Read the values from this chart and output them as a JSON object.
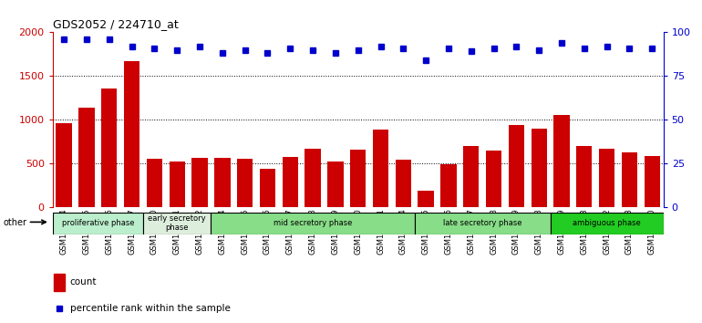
{
  "title": "GDS2052 / 224710_at",
  "samples": [
    "GSM109814",
    "GSM109815",
    "GSM109816",
    "GSM109817",
    "GSM109820",
    "GSM109821",
    "GSM109822",
    "GSM109824",
    "GSM109825",
    "GSM109826",
    "GSM109827",
    "GSM109828",
    "GSM109829",
    "GSM109830",
    "GSM109831",
    "GSM109834",
    "GSM109835",
    "GSM109836",
    "GSM109837",
    "GSM109838",
    "GSM109839",
    "GSM109818",
    "GSM109819",
    "GSM109823",
    "GSM109832",
    "GSM109833",
    "GSM109840"
  ],
  "counts": [
    960,
    1140,
    1360,
    1670,
    550,
    520,
    560,
    560,
    550,
    430,
    570,
    660,
    520,
    650,
    880,
    540,
    180,
    490,
    700,
    640,
    940,
    900,
    1050,
    700,
    670,
    620,
    580
  ],
  "percentiles": [
    96,
    96,
    96,
    92,
    91,
    90,
    92,
    88,
    90,
    88,
    91,
    90,
    88,
    90,
    92,
    91,
    84,
    91,
    89,
    91,
    92,
    90,
    94,
    91,
    92,
    91,
    91
  ],
  "bar_color": "#cc0000",
  "dot_color": "#0000cc",
  "phases": [
    {
      "label": "proliferative phase",
      "start": 0,
      "end": 4,
      "color": "#bbeecc"
    },
    {
      "label": "early secretory\nphase",
      "start": 4,
      "end": 7,
      "color": "#ddeedd"
    },
    {
      "label": "mid secretory phase",
      "start": 7,
      "end": 16,
      "color": "#88dd88"
    },
    {
      "label": "late secretory phase",
      "start": 16,
      "end": 22,
      "color": "#88dd88"
    },
    {
      "label": "ambiguous phase",
      "start": 22,
      "end": 27,
      "color": "#22cc22"
    }
  ],
  "ylim_left": [
    0,
    2000
  ],
  "ylim_right": [
    0,
    100
  ],
  "yticks_left": [
    0,
    500,
    1000,
    1500,
    2000
  ],
  "yticks_right": [
    0,
    25,
    50,
    75,
    100
  ],
  "left_color": "#cc0000",
  "right_color": "#0000cc",
  "plot_bg": "#ffffff",
  "ax_bg": "#ffffff"
}
